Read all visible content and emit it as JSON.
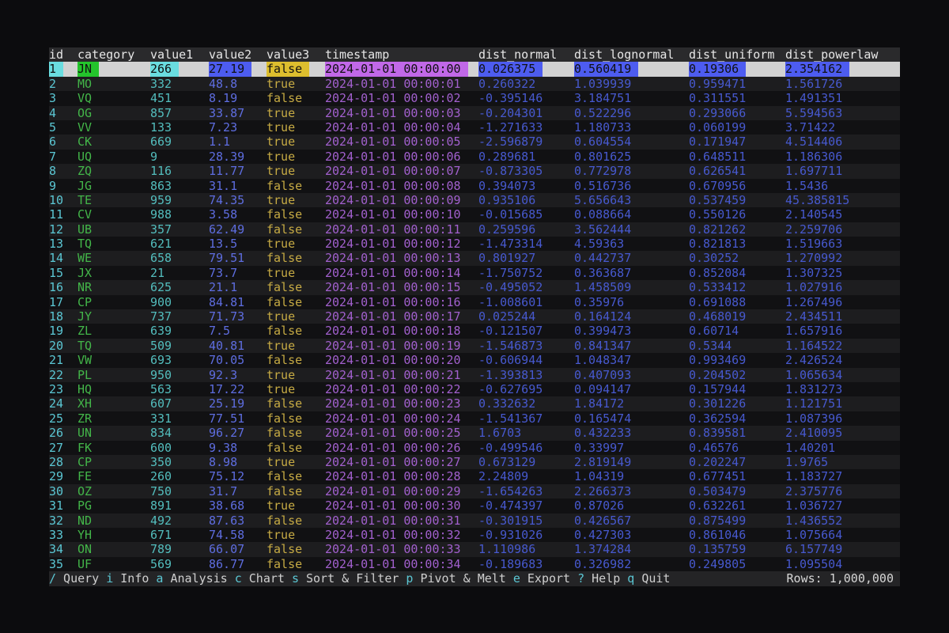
{
  "table": {
    "columns": [
      "id",
      "category",
      "value1",
      "value2",
      "value3",
      "timestamp",
      "dist_normal",
      "dist_lognormal",
      "dist_uniform",
      "dist_powerlaw"
    ],
    "selected_row_index": 0,
    "rows": [
      [
        "1",
        "JN",
        "266",
        "27.19",
        "false",
        "2024-01-01 00:00:00",
        "0.026375",
        "0.560419",
        "0.19306",
        "2.354162"
      ],
      [
        "2",
        "MO",
        "332",
        "48.8",
        "true",
        "2024-01-01 00:00:01",
        "0.260322",
        "1.039939",
        "0.959471",
        "1.561726"
      ],
      [
        "3",
        "VQ",
        "451",
        "8.19",
        "false",
        "2024-01-01 00:00:02",
        "-0.395146",
        "3.184751",
        "0.311551",
        "1.491351"
      ],
      [
        "4",
        "OG",
        "857",
        "33.87",
        "true",
        "2024-01-01 00:00:03",
        "-0.204301",
        "0.522296",
        "0.293066",
        "5.594563"
      ],
      [
        "5",
        "VV",
        "133",
        "7.23",
        "true",
        "2024-01-01 00:00:04",
        "-1.271633",
        "1.180733",
        "0.060199",
        "3.71422"
      ],
      [
        "6",
        "CK",
        "669",
        "1.1",
        "true",
        "2024-01-01 00:00:05",
        "-2.596879",
        "0.604554",
        "0.171947",
        "4.514406"
      ],
      [
        "7",
        "UQ",
        "9",
        "28.39",
        "true",
        "2024-01-01 00:00:06",
        "0.289681",
        "0.801625",
        "0.648511",
        "1.186306"
      ],
      [
        "8",
        "ZQ",
        "116",
        "11.77",
        "true",
        "2024-01-01 00:00:07",
        "-0.873305",
        "0.772978",
        "0.626541",
        "1.697711"
      ],
      [
        "9",
        "JG",
        "863",
        "31.1",
        "false",
        "2024-01-01 00:00:08",
        "0.394073",
        "0.516736",
        "0.670956",
        "1.5436"
      ],
      [
        "10",
        "TE",
        "959",
        "74.35",
        "true",
        "2024-01-01 00:00:09",
        "0.935106",
        "5.656643",
        "0.537459",
        "45.385815"
      ],
      [
        "11",
        "CV",
        "988",
        "3.58",
        "false",
        "2024-01-01 00:00:10",
        "-0.015685",
        "0.088664",
        "0.550126",
        "2.140545"
      ],
      [
        "12",
        "UB",
        "357",
        "62.49",
        "false",
        "2024-01-01 00:00:11",
        "0.259596",
        "3.562444",
        "0.821262",
        "2.259706"
      ],
      [
        "13",
        "TQ",
        "621",
        "13.5",
        "true",
        "2024-01-01 00:00:12",
        "-1.473314",
        "4.59363",
        "0.821813",
        "1.519663"
      ],
      [
        "14",
        "WE",
        "658",
        "79.51",
        "false",
        "2024-01-01 00:00:13",
        "0.801927",
        "0.442737",
        "0.30252",
        "1.270992"
      ],
      [
        "15",
        "JX",
        "21",
        "73.7",
        "true",
        "2024-01-01 00:00:14",
        "-1.750752",
        "0.363687",
        "0.852084",
        "1.307325"
      ],
      [
        "16",
        "NR",
        "625",
        "21.1",
        "false",
        "2024-01-01 00:00:15",
        "-0.495052",
        "1.458509",
        "0.533412",
        "1.027916"
      ],
      [
        "17",
        "CP",
        "900",
        "84.81",
        "false",
        "2024-01-01 00:00:16",
        "-1.008601",
        "0.35976",
        "0.691088",
        "1.267496"
      ],
      [
        "18",
        "JY",
        "737",
        "71.73",
        "true",
        "2024-01-01 00:00:17",
        "0.025244",
        "0.164124",
        "0.468019",
        "2.434511"
      ],
      [
        "19",
        "ZL",
        "639",
        "7.5",
        "false",
        "2024-01-01 00:00:18",
        "-0.121507",
        "0.399473",
        "0.60714",
        "1.657916"
      ],
      [
        "20",
        "TQ",
        "509",
        "40.81",
        "true",
        "2024-01-01 00:00:19",
        "-1.546873",
        "0.841347",
        "0.5344",
        "1.164522"
      ],
      [
        "21",
        "VW",
        "693",
        "70.05",
        "false",
        "2024-01-01 00:00:20",
        "-0.606944",
        "1.048347",
        "0.993469",
        "2.426524"
      ],
      [
        "22",
        "PL",
        "950",
        "92.3",
        "true",
        "2024-01-01 00:00:21",
        "-1.393813",
        "0.407093",
        "0.204502",
        "1.065634"
      ],
      [
        "23",
        "HQ",
        "563",
        "17.22",
        "true",
        "2024-01-01 00:00:22",
        "-0.627695",
        "0.094147",
        "0.157944",
        "1.831273"
      ],
      [
        "24",
        "XH",
        "607",
        "25.19",
        "false",
        "2024-01-01 00:00:23",
        "0.332632",
        "1.84172",
        "0.301226",
        "1.121751"
      ],
      [
        "25",
        "ZR",
        "331",
        "77.51",
        "false",
        "2024-01-01 00:00:24",
        "-1.541367",
        "0.165474",
        "0.362594",
        "1.087396"
      ],
      [
        "26",
        "UN",
        "834",
        "96.27",
        "false",
        "2024-01-01 00:00:25",
        "1.6703",
        "0.432233",
        "0.839581",
        "2.410095"
      ],
      [
        "27",
        "FK",
        "600",
        "9.38",
        "false",
        "2024-01-01 00:00:26",
        "-0.499546",
        "0.33997",
        "0.46576",
        "1.40201"
      ],
      [
        "28",
        "CP",
        "350",
        "8.98",
        "true",
        "2024-01-01 00:00:27",
        "0.673129",
        "2.819149",
        "0.202247",
        "1.9765"
      ],
      [
        "29",
        "FE",
        "260",
        "75.12",
        "false",
        "2024-01-01 00:00:28",
        "2.24809",
        "1.04319",
        "0.677451",
        "1.183727"
      ],
      [
        "30",
        "OZ",
        "750",
        "31.7",
        "false",
        "2024-01-01 00:00:29",
        "-1.654263",
        "2.266373",
        "0.503479",
        "2.375776"
      ],
      [
        "31",
        "PG",
        "891",
        "38.68",
        "true",
        "2024-01-01 00:00:30",
        "-0.474397",
        "0.87026",
        "0.632261",
        "1.036727"
      ],
      [
        "32",
        "ND",
        "492",
        "87.63",
        "false",
        "2024-01-01 00:00:31",
        "-0.301915",
        "0.426567",
        "0.875499",
        "1.436552"
      ],
      [
        "33",
        "YH",
        "671",
        "74.58",
        "true",
        "2024-01-01 00:00:32",
        "-0.931026",
        "0.427303",
        "0.861046",
        "1.075664"
      ],
      [
        "34",
        "ON",
        "789",
        "66.07",
        "false",
        "2024-01-01 00:00:33",
        "1.110986",
        "1.374284",
        "0.135759",
        "6.157749"
      ],
      [
        "35",
        "UF",
        "569",
        "86.77",
        "false",
        "2024-01-01 00:00:34",
        "-0.189683",
        "0.326982",
        "0.249805",
        "1.095504"
      ]
    ]
  },
  "status_bar": {
    "shortcuts": [
      {
        "key": "/",
        "label": "Query"
      },
      {
        "key": "i",
        "label": "Info"
      },
      {
        "key": "a",
        "label": "Analysis"
      },
      {
        "key": "c",
        "label": "Chart"
      },
      {
        "key": "s",
        "label": "Sort & Filter"
      },
      {
        "key": "p",
        "label": "Pivot & Melt"
      },
      {
        "key": "e",
        "label": "Export"
      },
      {
        "key": "?",
        "label": "Help"
      },
      {
        "key": "q",
        "label": "Quit"
      }
    ],
    "rows_counter": "Rows: 1,000,000"
  },
  "colors": {
    "column_text": {
      "id": "#5bc7d4",
      "category": "#43b649",
      "value1": "#53bdbd",
      "value2": "#5e6de0",
      "value3": "#c7ab44",
      "timestamp": "#a260ce",
      "dist_normal": "#4759cf",
      "dist_lognormal": "#4759cf",
      "dist_uniform": "#4759cf",
      "dist_powerlaw": "#4759cf"
    },
    "selected_chip_bg": {
      "id": "#6adde0",
      "category": "#24c42c",
      "value1": "#6adde0",
      "value2": "#4d5cf0",
      "value3": "#ddbe2e",
      "timestamp": "#c168e8",
      "dist_normal": "#4d5cf0",
      "dist_lognormal": "#4d5cf0",
      "dist_uniform": "#4d5cf0",
      "dist_powerlaw": "#4d5cf0"
    },
    "selected_row_bg": "#d2d2d2",
    "header_bg": "#2a2a2c",
    "status_key": "#5bc7d4"
  }
}
